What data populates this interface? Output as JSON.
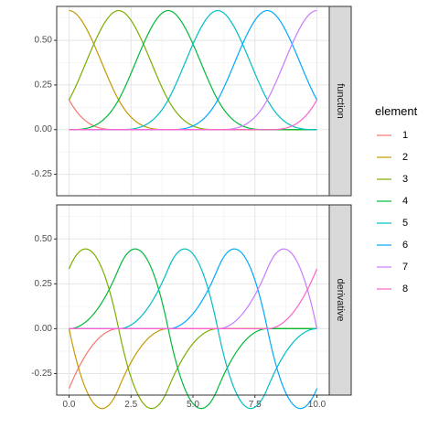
{
  "chart_data": {
    "type": "line",
    "layout": "faceted-rows",
    "x_domain": [
      0,
      10
    ],
    "x_ticks": [
      0,
      2.5,
      5,
      7.5,
      10
    ],
    "x_tick_labels": [
      "0.0",
      "2.5",
      "5.0",
      "7.5",
      "10.0"
    ],
    "y_ticks": [
      -0.25,
      0,
      0.25,
      0.5
    ],
    "y_tick_labels": [
      "-0.25",
      "0.00",
      "0.25",
      "0.50"
    ],
    "ylim": [
      -0.37,
      0.69
    ],
    "grid": true,
    "legend_position": "right",
    "legend": {
      "title": "element",
      "items": [
        {
          "label": "1",
          "color": "#F8766D"
        },
        {
          "label": "2",
          "color": "#C49A00"
        },
        {
          "label": "3",
          "color": "#7CAE00"
        },
        {
          "label": "4",
          "color": "#00BA38"
        },
        {
          "label": "5",
          "color": "#00BFC4"
        },
        {
          "label": "6",
          "color": "#00A9FF"
        },
        {
          "label": "7",
          "color": "#C77CFF"
        },
        {
          "label": "8",
          "color": "#FF61CC"
        }
      ]
    },
    "facets": [
      {
        "strip": "function",
        "kind": "function"
      },
      {
        "strip": "derivative",
        "kind": "derivative"
      }
    ],
    "basis": {
      "description_hidden": false,
      "peak_value": 0.6667,
      "elements": [
        {
          "element": "1",
          "center": -2,
          "support": [
            -4,
            0
          ]
        },
        {
          "element": "2",
          "center": 0,
          "support": [
            -2,
            2
          ]
        },
        {
          "element": "3",
          "center": 2,
          "support": [
            0,
            4
          ]
        },
        {
          "element": "4",
          "center": 4,
          "support": [
            2,
            6
          ]
        },
        {
          "element": "5",
          "center": 6,
          "support": [
            4,
            8
          ]
        },
        {
          "element": "6",
          "center": 8,
          "support": [
            6,
            10
          ]
        },
        {
          "element": "7",
          "center": 10,
          "support": [
            8,
            12
          ]
        },
        {
          "element": "8",
          "center": 12,
          "support": [
            10,
            14
          ]
        }
      ]
    }
  }
}
